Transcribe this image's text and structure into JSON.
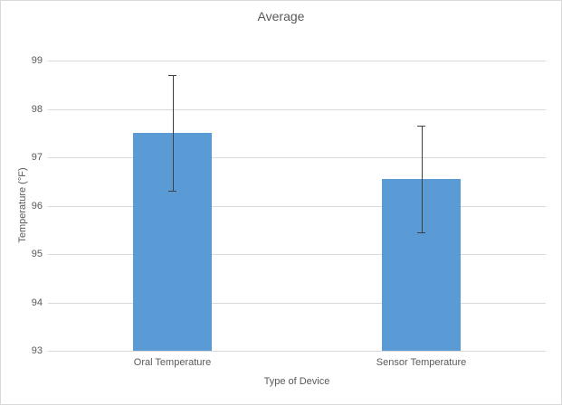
{
  "chart_data": {
    "type": "bar",
    "title": "Average",
    "categories": [
      "Oral Temperature",
      "Sensor Temperature"
    ],
    "values": [
      97.5,
      96.55
    ],
    "error_bars": {
      "upper": [
        98.7,
        97.65
      ],
      "lower": [
        96.3,
        95.45
      ]
    },
    "xlabel": "Type of Device",
    "ylabel": "Temperature (°F)",
    "ylim": [
      93,
      99
    ],
    "yticks": [
      93,
      94,
      95,
      96,
      97,
      98,
      99
    ],
    "grid": true,
    "legend": false
  },
  "colors": {
    "bar": "#5b9bd5",
    "gridline": "#d9d9d9",
    "text": "#595959",
    "error_bar": "#404040",
    "frame_border": "#d9d9d9",
    "background": "#ffffff"
  }
}
